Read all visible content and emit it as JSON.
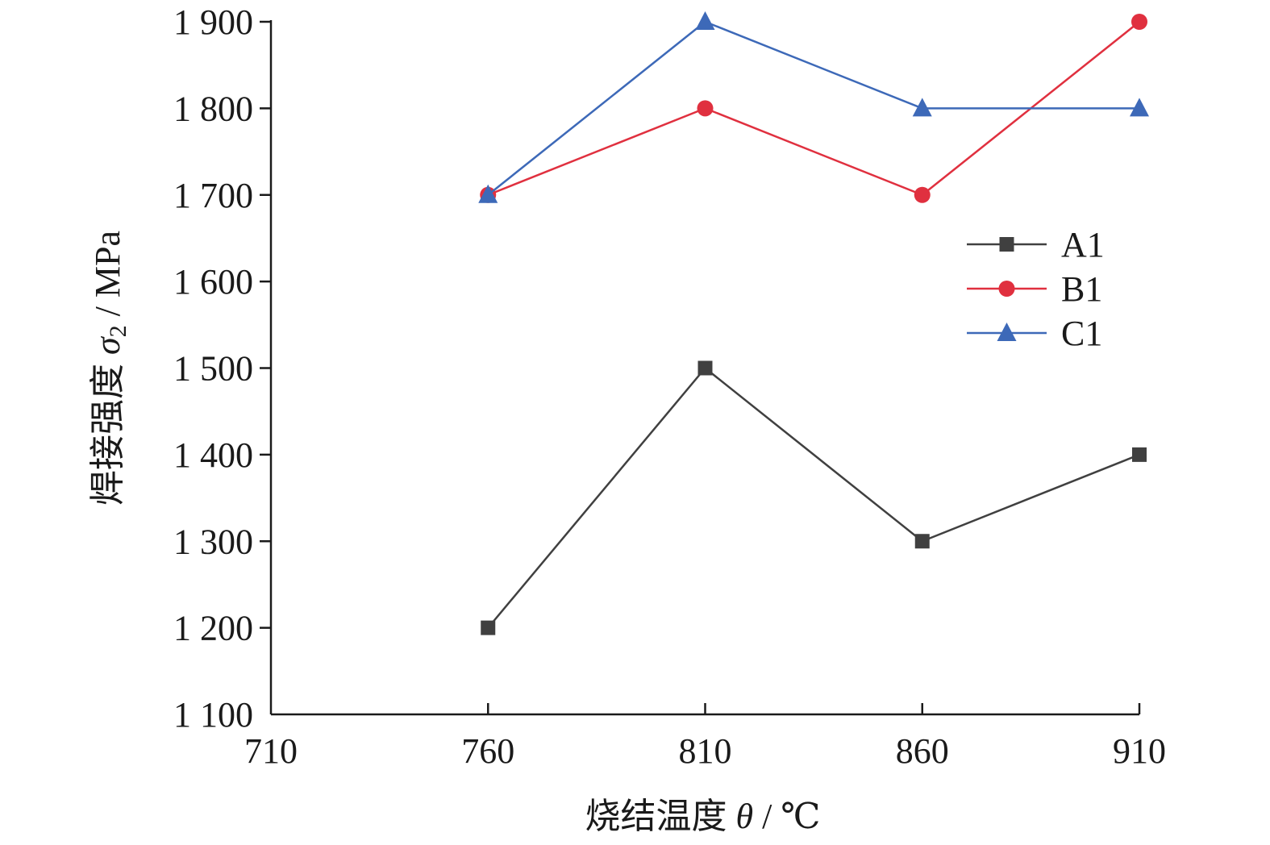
{
  "chart_data": {
    "type": "line",
    "title": "",
    "xlabel": {
      "prefix": "烧结温度 ",
      "symbol": "θ",
      "suffix": " / ℃"
    },
    "ylabel": {
      "prefix": "焊接强度 ",
      "symbol": "σ",
      "subscript": "2",
      "suffix": " / MPa"
    },
    "xlim": [
      710,
      910
    ],
    "ylim": [
      1100,
      1900
    ],
    "xticks": [
      710,
      760,
      810,
      860,
      910
    ],
    "xtick_labels": [
      "710",
      "760",
      "810",
      "860",
      "910"
    ],
    "yticks": [
      1100,
      1200,
      1300,
      1400,
      1500,
      1600,
      1700,
      1800,
      1900
    ],
    "ytick_labels": [
      "1 100",
      "1 200",
      "1 300",
      "1 400",
      "1 500",
      "1 600",
      "1 700",
      "1 800",
      "1 900"
    ],
    "x": [
      760,
      810,
      860,
      910
    ],
    "series": [
      {
        "name": "A1",
        "values": [
          1200,
          1500,
          1300,
          1400
        ],
        "color": "#404040",
        "marker": "square"
      },
      {
        "name": "B1",
        "values": [
          1700,
          1800,
          1700,
          1900
        ],
        "color": "#e0303f",
        "marker": "circle"
      },
      {
        "name": "C1",
        "values": [
          1700,
          1900,
          1800,
          1800
        ],
        "color": "#3d69b8",
        "marker": "triangle"
      }
    ],
    "legend_position": "right",
    "grid": false
  }
}
